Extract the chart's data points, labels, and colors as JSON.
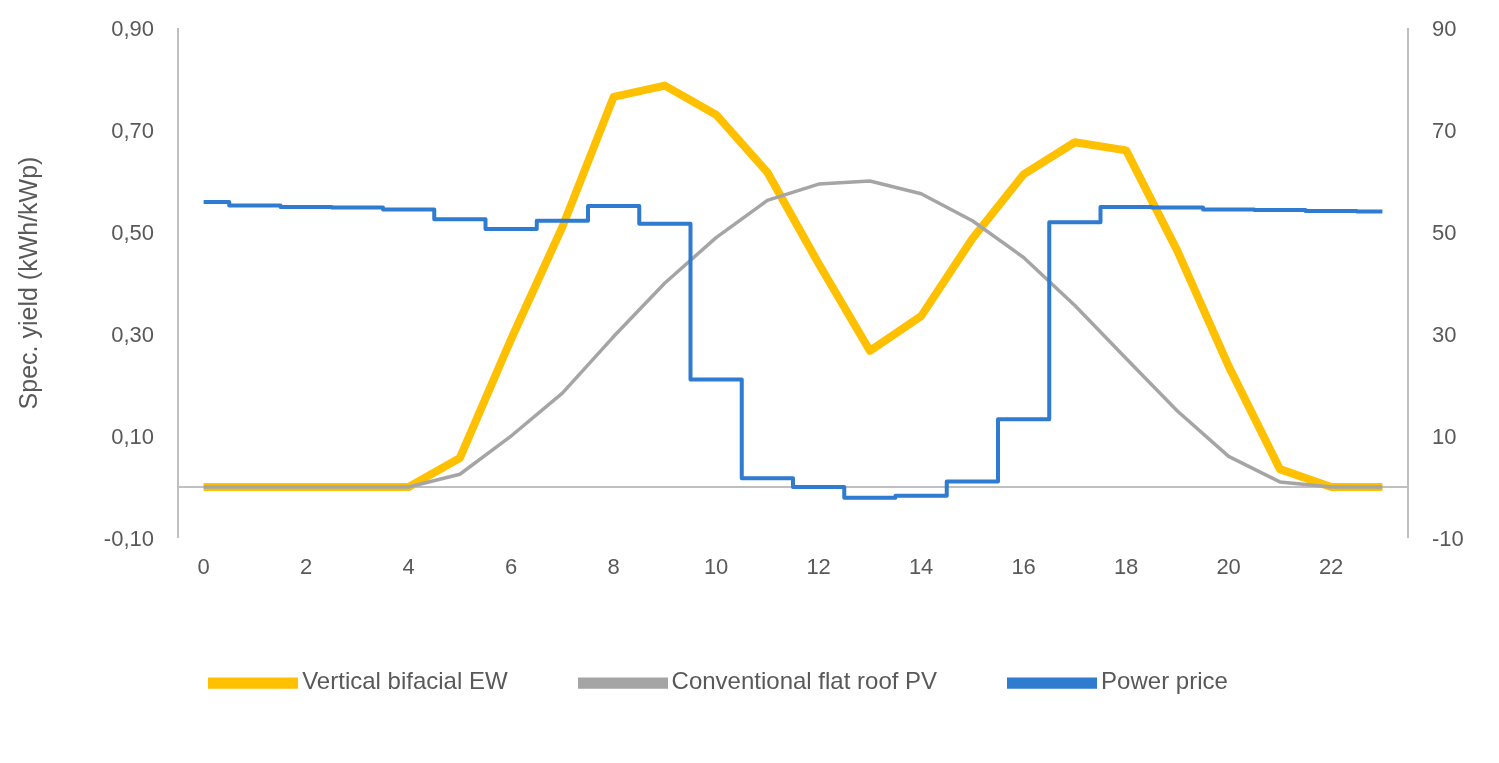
{
  "chart_data": {
    "type": "line",
    "ylabel": "Spec. yield (kWh/kWp)",
    "x": [
      0,
      1,
      2,
      3,
      4,
      5,
      6,
      7,
      8,
      9,
      10,
      11,
      12,
      13,
      14,
      15,
      16,
      17,
      18,
      19,
      20,
      21,
      22,
      23
    ],
    "xlim": [
      -0.5,
      23.5
    ],
    "xticks": [
      0,
      2,
      4,
      6,
      8,
      10,
      12,
      14,
      16,
      18,
      20,
      22
    ],
    "ylim": [
      -0.1,
      0.9
    ],
    "yticks": [
      {
        "value": -0.1,
        "label": "-0,10"
      },
      {
        "value": 0.1,
        "label": "0,10"
      },
      {
        "value": 0.3,
        "label": "0,30"
      },
      {
        "value": 0.5,
        "label": "0,50"
      },
      {
        "value": 0.7,
        "label": "0,70"
      },
      {
        "value": 0.9,
        "label": "0,90"
      }
    ],
    "y2lim": [
      -10,
      90
    ],
    "y2ticks": [
      -10,
      10,
      30,
      50,
      70,
      90
    ],
    "grid": false,
    "legend": "bottom",
    "marker": "none",
    "line_style": "solid",
    "series": [
      {
        "name": "Vertical bifacial EW",
        "color": "#ffc000",
        "values": [
          0,
          0,
          0,
          0,
          0,
          0.057,
          0.29,
          0.51,
          0.765,
          0.787,
          0.73,
          0.617,
          0.438,
          0.267,
          0.335,
          0.487,
          0.613,
          0.676,
          0.66,
          0.463,
          0.237,
          0.035,
          0,
          0
        ]
      },
      {
        "name": "Conventional flat roof PV",
        "color": "#a5a5a5",
        "values": [
          0,
          0,
          0,
          0,
          0,
          0.025,
          0.1,
          0.184,
          0.295,
          0.4,
          0.489,
          0.562,
          0.594,
          0.6,
          0.575,
          0.522,
          0.45,
          0.356,
          0.252,
          0.149,
          0.06,
          0.01,
          0,
          0
        ]
      },
      {
        "name": "Power price",
        "color": "#2e7bcf",
        "type": "step",
        "axis": "y2",
        "values": [
          55.9,
          55.2,
          54.9,
          54.8,
          54.4,
          52.5,
          50.6,
          52.2,
          55.1,
          51.6,
          21.1,
          1.7,
          0,
          -2.1,
          -1.7,
          1.1,
          13.3,
          51.9,
          54.9,
          54.8,
          54.4,
          54.3,
          54.1,
          54.0
        ]
      }
    ]
  }
}
